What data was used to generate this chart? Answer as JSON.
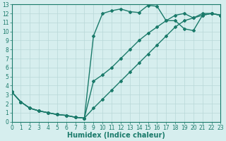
{
  "line1_x": [
    0,
    1,
    2,
    3,
    4,
    5,
    6,
    7,
    8,
    9,
    10,
    11,
    12,
    13,
    14,
    15,
    16,
    17,
    18,
    19,
    20,
    21,
    22,
    23
  ],
  "line1_y": [
    3.3,
    2.2,
    1.5,
    1.2,
    1.0,
    0.8,
    0.7,
    0.5,
    0.4,
    9.5,
    12.0,
    12.3,
    12.5,
    12.2,
    12.1,
    12.9,
    12.8,
    11.2,
    11.2,
    10.3,
    10.1,
    11.8,
    12.0,
    11.8
  ],
  "line2_x": [
    0,
    1,
    2,
    3,
    4,
    5,
    6,
    7,
    8,
    9,
    10,
    11,
    12,
    13,
    14,
    15,
    16,
    17,
    18,
    19,
    20,
    21,
    22,
    23
  ],
  "line2_y": [
    3.3,
    2.2,
    1.5,
    1.2,
    1.0,
    0.8,
    0.7,
    0.5,
    0.4,
    4.5,
    5.2,
    6.0,
    7.0,
    8.0,
    9.0,
    9.8,
    10.5,
    11.2,
    11.8,
    12.0,
    11.5,
    11.8,
    12.0,
    11.8
  ],
  "line3_x": [
    0,
    1,
    2,
    3,
    4,
    5,
    6,
    7,
    8,
    9,
    10,
    11,
    12,
    13,
    14,
    15,
    16,
    17,
    18,
    19,
    20,
    21,
    22,
    23
  ],
  "line3_y": [
    3.3,
    2.2,
    1.5,
    1.2,
    1.0,
    0.8,
    0.7,
    0.5,
    0.4,
    1.5,
    2.5,
    3.5,
    4.5,
    5.5,
    6.5,
    7.5,
    8.5,
    9.5,
    10.5,
    11.2,
    11.5,
    12.0,
    12.0,
    11.8
  ],
  "line_color": "#1a7a6a",
  "bg_color": "#d6eeee",
  "grid_color": "#b8d8d8",
  "xlabel": "Humidex (Indice chaleur)",
  "xlim": [
    0,
    23
  ],
  "ylim": [
    0,
    13
  ],
  "xticks": [
    0,
    1,
    2,
    3,
    4,
    5,
    6,
    7,
    8,
    9,
    10,
    11,
    12,
    13,
    14,
    15,
    16,
    17,
    18,
    19,
    20,
    21,
    22,
    23
  ],
  "yticks": [
    0,
    1,
    2,
    3,
    4,
    5,
    6,
    7,
    8,
    9,
    10,
    11,
    12,
    13
  ],
  "marker": "D",
  "markersize": 2.0,
  "linewidth": 1.0,
  "xlabel_fontsize": 7,
  "tick_fontsize": 5.5
}
